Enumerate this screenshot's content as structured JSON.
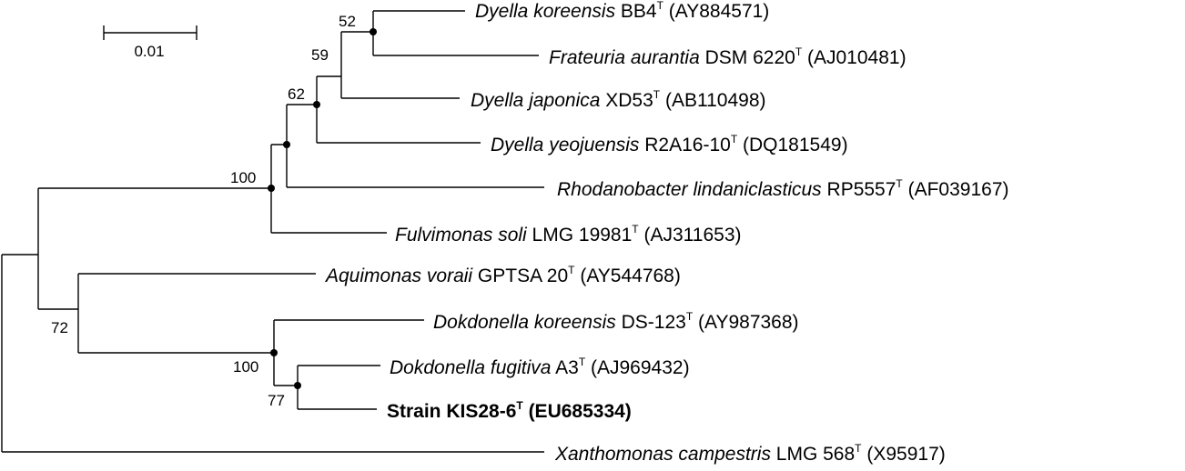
{
  "scale_bar": {
    "label": "0.01"
  },
  "bootstrap": {
    "n52": "52",
    "n59": "59",
    "n62": "62",
    "n100a": "100",
    "n72": "72",
    "n100b": "100",
    "n77": "77"
  },
  "taxa": [
    {
      "species": "Dyella koreensis",
      "strain": " BB4",
      "sup": "T",
      "acc": " (AY884571)"
    },
    {
      "species": "Frateuria aurantia",
      "strain": " DSM 6220",
      "sup": "T",
      "acc": " (AJ010481)"
    },
    {
      "species": "Dyella japonica",
      "strain": " XD53",
      "sup": "T",
      "acc": " (AB110498)"
    },
    {
      "species": "Dyella yeojuensis",
      "strain": " R2A16-10",
      "sup": "T",
      "acc": " (DQ181549)"
    },
    {
      "species": "Rhodanobacter lindaniclasticus",
      "strain": " RP5557",
      "sup": "T",
      "acc": " (AF039167)"
    },
    {
      "species": "Fulvimonas soli",
      "strain": " LMG 19981",
      "sup": "T",
      "acc": " (AJ311653)"
    },
    {
      "species": "Aquimonas voraii",
      "strain": " GPTSA 20",
      "sup": "T",
      "acc": " (AY544768)"
    },
    {
      "species": "Dokdonella koreensis",
      "strain": " DS-123",
      "sup": "T",
      "acc": " (AY987368)"
    },
    {
      "species": "Dokdonella fugitiva",
      "strain": " A3",
      "sup": "T",
      "acc": " (AJ969432)"
    },
    {
      "species": "",
      "strain": "Strain KIS28-6",
      "sup": "T",
      "acc": " (EU685334)"
    },
    {
      "species": "Xanthomonas campestris",
      "strain": " LMG 568",
      "sup": "T",
      "acc": " (X95917)"
    }
  ]
}
